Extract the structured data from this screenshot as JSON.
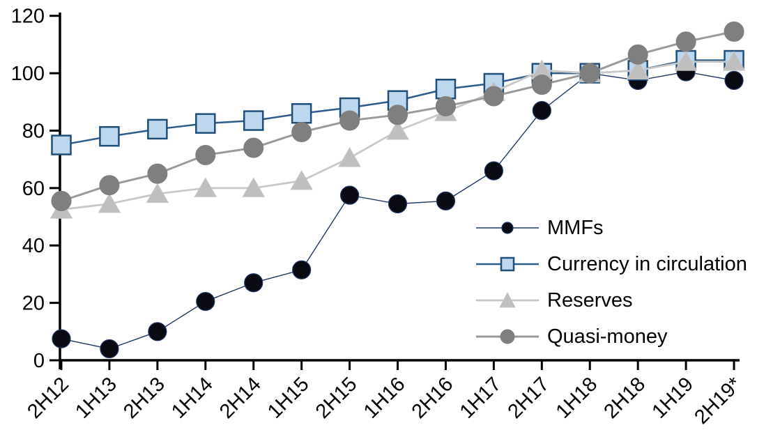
{
  "chart_data": {
    "type": "line",
    "categories": [
      "2H12",
      "1H13",
      "2H13",
      "1H14",
      "2H14",
      "1H15",
      "2H15",
      "1H16",
      "2H16",
      "1H17",
      "2H17",
      "1H18",
      "2H18",
      "1H19",
      "2H19*"
    ],
    "series": [
      {
        "id": "mmfs",
        "name": "MMFs",
        "marker": "circle",
        "marker_size": 26,
        "legend_marker_size": 16,
        "marker_fill": "#0a0b12",
        "marker_edge": "#1F3864",
        "marker_edge_width": 1.2,
        "line_color": "#1F3864",
        "line_width": 1.4,
        "values": [
          7.5,
          4,
          10,
          20.5,
          27,
          31.5,
          57.5,
          54.5,
          55.5,
          66,
          87,
          100,
          97.5,
          100.5,
          97.5
        ]
      },
      {
        "id": "currency-in-circulation",
        "name": "Currency in circulation",
        "marker": "square",
        "marker_size": 27,
        "legend_marker_size": 18,
        "marker_fill": "#BDD7EE",
        "marker_edge": "#1F4E79",
        "marker_edge_width": 2.5,
        "line_color": "#2E5C8A",
        "line_width": 2.5,
        "values": [
          75,
          78,
          80.5,
          82.5,
          83.5,
          86,
          88,
          90.5,
          94.5,
          96.5,
          100,
          100,
          101,
          104.5,
          104.5
        ]
      },
      {
        "id": "reserves",
        "name": "Reserves",
        "marker": "triangle",
        "marker_size": 29,
        "legend_marker_size": 22,
        "marker_fill": "#BFBFBF",
        "marker_edge": "#C6C6C6",
        "marker_edge_width": 1,
        "line_color": "#C8C8C8",
        "line_width": 2.8,
        "values": [
          52.5,
          54.5,
          58,
          60,
          60,
          62.5,
          70.5,
          80,
          86.5,
          93.5,
          101,
          100,
          101,
          104,
          104
        ]
      },
      {
        "id": "quasi-money",
        "name": "Quasi-money",
        "marker": "circle",
        "marker_size": 28,
        "legend_marker_size": 20,
        "marker_fill": "#7F7F7F",
        "marker_edge": "#7F7F7F",
        "marker_edge_width": 1,
        "line_color": "#9A9A9A",
        "line_width": 3,
        "values": [
          55.5,
          61,
          65,
          71.5,
          74,
          79.5,
          83.5,
          85.5,
          88.5,
          92,
          96,
          100,
          106.5,
          111,
          114.5
        ]
      }
    ],
    "ylim": [
      0,
      120
    ],
    "yticks": [
      0,
      20,
      40,
      60,
      80,
      100,
      120
    ],
    "xlabel": "",
    "ylabel": "",
    "title": "",
    "grid": false,
    "axis_color": "#000000",
    "legend_position": "inside-right",
    "x_tick_label_rotation": 45
  }
}
